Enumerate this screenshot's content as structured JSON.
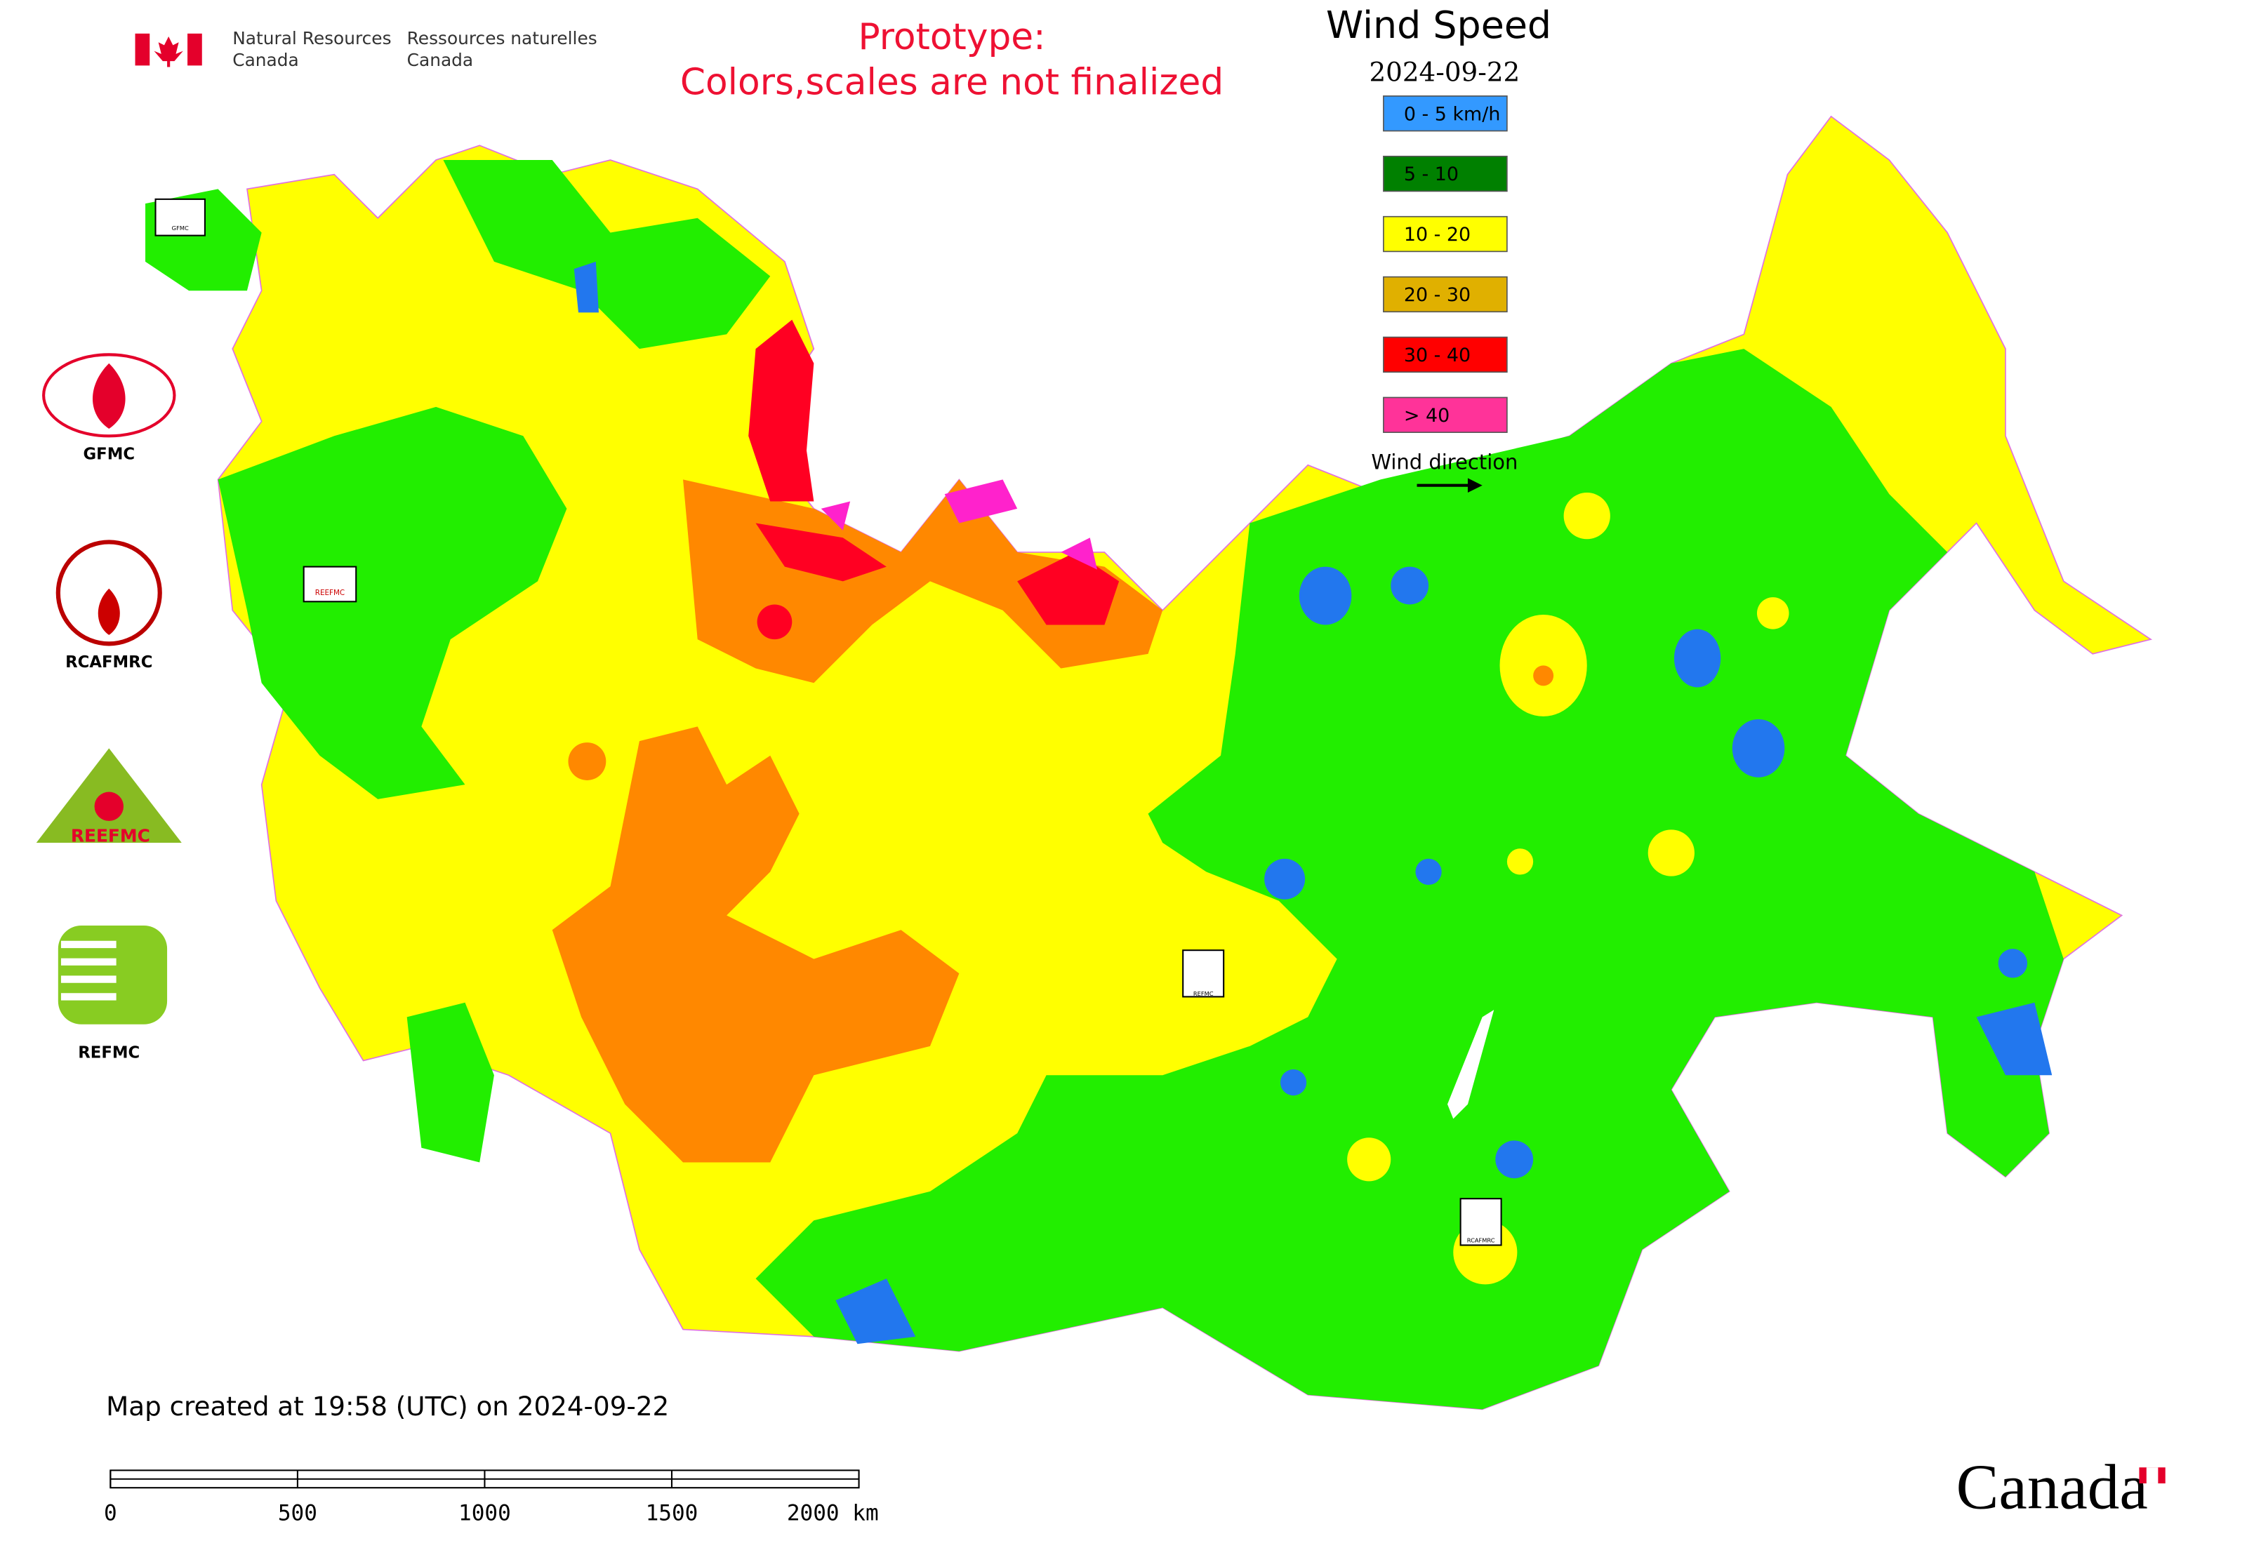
{
  "header": {
    "agency_en": [
      "Natural Resources",
      "Canada"
    ],
    "agency_fr": [
      "Ressources naturelles",
      "Canada"
    ],
    "notice": [
      "Prototype:",
      "Colors,scales are not finalized"
    ]
  },
  "legend": {
    "title": "Wind Speed",
    "date": "2024-09-22",
    "items": [
      {
        "label": "0 - 5 km/h",
        "color": "#3399ff"
      },
      {
        "label": "5 - 10",
        "color": "#008000"
      },
      {
        "label": "10 - 20",
        "color": "#ffff00"
      },
      {
        "label": "20 - 30",
        "color": "#e0b000"
      },
      {
        "label": "30 - 40",
        "color": "#ff0000"
      },
      {
        "label": "> 40",
        "color": "#ff3399"
      }
    ],
    "direction_label": "Wind direction"
  },
  "logos": [
    "GFMC",
    "RCAFMRC",
    "REEFMC",
    "REFMC"
  ],
  "map_markers": [
    "GFMC",
    "REEFMC",
    "REFMC",
    "RCAFMRC"
  ],
  "footer": {
    "created": "Map created at 19:58 (UTC) on 2024-09-22",
    "scale_labels": [
      "0",
      "500",
      "1000",
      "1500",
      "2000 km"
    ],
    "wordmark": "Canada"
  }
}
